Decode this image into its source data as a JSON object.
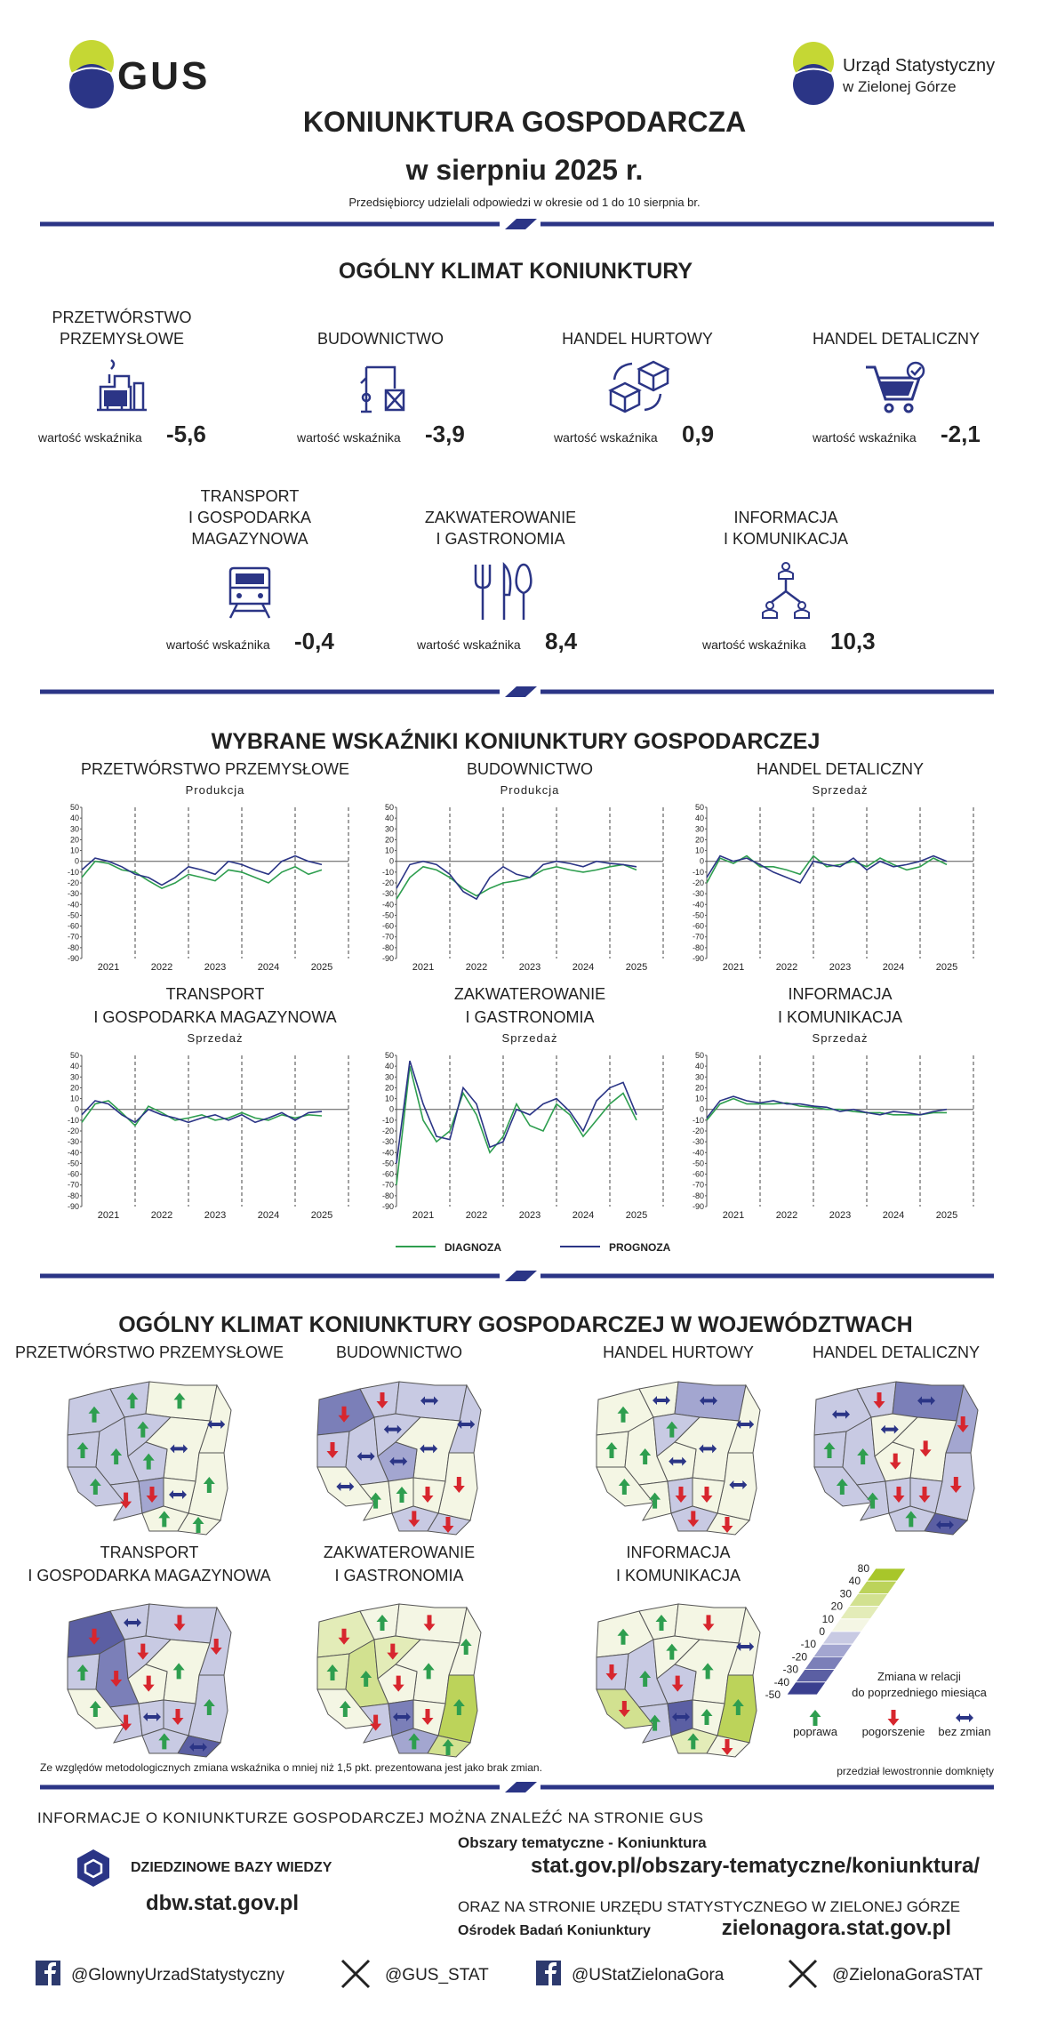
{
  "header": {
    "logo_left": "GUS",
    "logo_right_1": "Urząd Statystyczny",
    "logo_right_2": "w Zielonej Górze",
    "title_1": "KONIUNKTURA GOSPODARCZA",
    "title_2": "w sierpniu 2025 r.",
    "subtitle": "Przedsiębiorcy udzielali odpowiedzi w okresie od 1 do 10 sierpnia br."
  },
  "climate": {
    "title": "OGÓLNY KLIMAT KONIUNKTURY",
    "caption": "wartość wskaźnika",
    "items": [
      {
        "label": [
          "PRZETWÓRSTWO",
          "PRZEMYSŁOWE"
        ],
        "value": "-5,6"
      },
      {
        "label": [
          "BUDOWNICTWO"
        ],
        "value": "-3,9"
      },
      {
        "label": [
          "HANDEL HURTOWY"
        ],
        "value": "0,9"
      },
      {
        "label": [
          "HANDEL DETALICZNY"
        ],
        "value": "-2,1"
      },
      {
        "label": [
          "TRANSPORT",
          "I GOSPODARKA",
          "MAGAZYNOWA"
        ],
        "value": "-0,4"
      },
      {
        "label": [
          "ZAKWATEROWANIE",
          "I GASTRONOMIA"
        ],
        "value": "8,4"
      },
      {
        "label": [
          "INFORMACJA",
          "I KOMUNIKACJA"
        ],
        "value": "10,3"
      }
    ]
  },
  "indicators_title": "WYBRANE WSKAŹNIKI KONIUNKTURY GOSPODARCZEJ",
  "chart_data": [
    {
      "type": "line",
      "title": [
        "PRZETWÓRSTWO PRZEMYSŁOWE"
      ],
      "subtitle": "Produkcja",
      "x": [
        2021,
        2021.25,
        2021.5,
        2021.75,
        2022,
        2022.25,
        2022.5,
        2022.75,
        2023,
        2023.25,
        2023.5,
        2023.75,
        2024,
        2024.25,
        2024.5,
        2024.75,
        2025,
        2025.25,
        2025.5
      ],
      "xlim": [
        2021,
        2026
      ],
      "xticks": [
        2021,
        2022,
        2023,
        2024,
        2025
      ],
      "ylim": [
        -90,
        50
      ],
      "yticks": [
        50,
        40,
        30,
        20,
        10,
        0,
        -10,
        -20,
        -30,
        -40,
        -50,
        -60,
        -70,
        -80,
        -90
      ],
      "series": [
        {
          "name": "DIAGNOZA",
          "color": "#2e9e4f",
          "values": [
            -15,
            0,
            -2,
            -8,
            -10,
            -18,
            -25,
            -20,
            -12,
            -15,
            -18,
            -8,
            -10,
            -15,
            -20,
            -10,
            -5,
            -12,
            -8
          ]
        },
        {
          "name": "PROGNOZA",
          "color": "#2b3586",
          "values": [
            -8,
            3,
            0,
            -5,
            -12,
            -15,
            -22,
            -15,
            -5,
            -8,
            -12,
            0,
            -3,
            -8,
            -12,
            0,
            5,
            0,
            -3
          ]
        }
      ]
    },
    {
      "type": "line",
      "title": [
        "BUDOWNICTWO"
      ],
      "subtitle": "Produkcja",
      "x": [
        2021,
        2021.25,
        2021.5,
        2021.75,
        2022,
        2022.25,
        2022.5,
        2022.75,
        2023,
        2023.25,
        2023.5,
        2023.75,
        2024,
        2024.25,
        2024.5,
        2024.75,
        2025,
        2025.25,
        2025.5
      ],
      "xlim": [
        2021,
        2026
      ],
      "xticks": [
        2021,
        2022,
        2023,
        2024,
        2025
      ],
      "ylim": [
        -90,
        50
      ],
      "yticks": [
        50,
        40,
        30,
        20,
        10,
        0,
        -10,
        -20,
        -30,
        -40,
        -50,
        -60,
        -70,
        -80,
        -90
      ],
      "series": [
        {
          "name": "DIAGNOZA",
          "color": "#2e9e4f",
          "values": [
            -35,
            -15,
            -5,
            -8,
            -15,
            -25,
            -32,
            -25,
            -20,
            -18,
            -15,
            -8,
            -5,
            -8,
            -10,
            -8,
            -5,
            -3,
            -8
          ]
        },
        {
          "name": "PROGNOZA",
          "color": "#2b3586",
          "values": [
            -25,
            -3,
            0,
            -3,
            -12,
            -28,
            -35,
            -15,
            -5,
            -12,
            -15,
            -3,
            0,
            -2,
            -5,
            0,
            -2,
            -3,
            -5
          ]
        }
      ]
    },
    {
      "type": "line",
      "title": [
        "HANDEL DETALICZNY"
      ],
      "subtitle": "Sprzedaż",
      "x": [
        2021,
        2021.25,
        2021.5,
        2021.75,
        2022,
        2022.25,
        2022.5,
        2022.75,
        2023,
        2023.25,
        2023.5,
        2023.75,
        2024,
        2024.25,
        2024.5,
        2024.75,
        2025,
        2025.25,
        2025.5
      ],
      "xlim": [
        2021,
        2026
      ],
      "xticks": [
        2021,
        2022,
        2023,
        2024,
        2025
      ],
      "ylim": [
        -90,
        50
      ],
      "yticks": [
        50,
        40,
        30,
        20,
        10,
        0,
        -10,
        -20,
        -30,
        -40,
        -50,
        -60,
        -70,
        -80,
        -90
      ],
      "series": [
        {
          "name": "DIAGNOZA",
          "color": "#2e9e4f",
          "values": [
            -20,
            3,
            -2,
            5,
            -5,
            -5,
            -8,
            -12,
            5,
            -5,
            -3,
            0,
            -5,
            3,
            -3,
            -8,
            -5,
            3,
            -3
          ]
        },
        {
          "name": "PROGNOZA",
          "color": "#2b3586",
          "values": [
            -15,
            5,
            0,
            3,
            -3,
            -10,
            -15,
            -20,
            0,
            -3,
            -5,
            3,
            -8,
            0,
            -5,
            -3,
            0,
            5,
            0
          ]
        }
      ]
    },
    {
      "type": "line",
      "title": [
        "TRANSPORT",
        "I GOSPODARKA MAGAZYNOWA"
      ],
      "subtitle": "Sprzedaż",
      "x": [
        2021,
        2021.25,
        2021.5,
        2021.75,
        2022,
        2022.25,
        2022.5,
        2022.75,
        2023,
        2023.25,
        2023.5,
        2023.75,
        2024,
        2024.25,
        2024.5,
        2024.75,
        2025,
        2025.25,
        2025.5
      ],
      "xlim": [
        2021,
        2026
      ],
      "xticks": [
        2021,
        2022,
        2023,
        2024,
        2025
      ],
      "ylim": [
        -90,
        50
      ],
      "yticks": [
        50,
        40,
        30,
        20,
        10,
        0,
        -10,
        -20,
        -30,
        -40,
        -50,
        -60,
        -70,
        -80,
        -90
      ],
      "series": [
        {
          "name": "DIAGNOZA",
          "color": "#2e9e4f",
          "values": [
            -12,
            5,
            8,
            -3,
            -15,
            3,
            -3,
            -10,
            -8,
            -5,
            -10,
            -8,
            -3,
            -8,
            -10,
            -5,
            -8,
            -5,
            -6
          ]
        },
        {
          "name": "PROGNOZA",
          "color": "#2b3586",
          "values": [
            -5,
            8,
            5,
            -5,
            -12,
            0,
            -5,
            -8,
            -12,
            -8,
            -5,
            -10,
            -5,
            -12,
            -8,
            -3,
            -10,
            -3,
            -2
          ]
        }
      ]
    },
    {
      "type": "line",
      "title": [
        "ZAKWATEROWANIE",
        "I GASTRONOMIA"
      ],
      "subtitle": "Sprzedaż",
      "x": [
        2021,
        2021.25,
        2021.5,
        2021.75,
        2022,
        2022.25,
        2022.5,
        2022.75,
        2023,
        2023.25,
        2023.5,
        2023.75,
        2024,
        2024.25,
        2024.5,
        2024.75,
        2025,
        2025.25,
        2025.5
      ],
      "xlim": [
        2021,
        2026
      ],
      "xticks": [
        2021,
        2022,
        2023,
        2024,
        2025
      ],
      "ylim": [
        -90,
        50
      ],
      "yticks": [
        50,
        40,
        30,
        20,
        10,
        0,
        -10,
        -20,
        -30,
        -40,
        -50,
        -60,
        -70,
        -80,
        -90
      ],
      "series": [
        {
          "name": "DIAGNOZA",
          "color": "#2e9e4f",
          "values": [
            -70,
            40,
            -10,
            -30,
            -20,
            15,
            -5,
            -40,
            -25,
            5,
            -15,
            -20,
            5,
            -5,
            -25,
            -10,
            5,
            15,
            -10
          ]
        },
        {
          "name": "PROGNOZA",
          "color": "#2b3586",
          "values": [
            -50,
            45,
            5,
            -25,
            -28,
            20,
            5,
            -35,
            -30,
            0,
            -5,
            5,
            10,
            -2,
            -20,
            8,
            20,
            25,
            -5
          ]
        }
      ]
    },
    {
      "type": "line",
      "title": [
        "INFORMACJA",
        "I KOMUNIKACJA"
      ],
      "subtitle": "Sprzedaż",
      "x": [
        2021,
        2021.25,
        2021.5,
        2021.75,
        2022,
        2022.25,
        2022.5,
        2022.75,
        2023,
        2023.25,
        2023.5,
        2023.75,
        2024,
        2024.25,
        2024.5,
        2024.75,
        2025,
        2025.25,
        2025.5
      ],
      "xlim": [
        2021,
        2026
      ],
      "xticks": [
        2021,
        2022,
        2023,
        2024,
        2025
      ],
      "ylim": [
        -90,
        50
      ],
      "yticks": [
        50,
        40,
        30,
        20,
        10,
        0,
        -10,
        -20,
        -30,
        -40,
        -50,
        -60,
        -70,
        -80,
        -90
      ],
      "series": [
        {
          "name": "DIAGNOZA",
          "color": "#2e9e4f",
          "values": [
            -10,
            5,
            10,
            5,
            5,
            5,
            6,
            3,
            2,
            0,
            0,
            -2,
            -3,
            -3,
            -5,
            -5,
            -5,
            -3,
            -3
          ]
        },
        {
          "name": "PROGNOZA",
          "color": "#2b3586",
          "values": [
            -8,
            8,
            12,
            8,
            6,
            8,
            5,
            5,
            3,
            2,
            -2,
            0,
            -3,
            -5,
            -2,
            -3,
            -5,
            -2,
            0
          ]
        }
      ]
    }
  ],
  "regional": {
    "title": "OGÓLNY KLIMAT KONIUNKTURY GOSPODARCZEJ W WOJEWÓDZTWACH",
    "maps": [
      {
        "title": [
          "PRZETWÓRSTWO PRZEMYSŁOWE"
        ],
        "colors": [
          "#c8cae3",
          "#c8cae3",
          "#f4f6e4",
          "#f4f6e4",
          "#c8cae3",
          "#c8cae3",
          "#c8cae3",
          "#f4f6e4",
          "#c8cae3",
          "#f4f6e4",
          "#c8cae3",
          "#c8cae3",
          "#a3a6d0",
          "#f4f6e4",
          "#f4f6e4",
          "#f4f6e4"
        ],
        "trends": [
          "poprawa",
          "poprawa",
          "poprawa",
          "bez zmian",
          "poprawa",
          "poprawa",
          "poprawa",
          "bez zmian",
          "poprawa",
          "poprawa",
          "poprawa",
          "pogorszenie",
          "pogorszenie",
          "bez zmian",
          "poprawa",
          "poprawa"
        ]
      },
      {
        "title": [
          "BUDOWNICTWO"
        ],
        "colors": [
          "#7b7fb8",
          "#c8cae3",
          "#c8cae3",
          "#c8cae3",
          "#c8cae3",
          "#c8cae3",
          "#c8cae3",
          "#f4f6e4",
          "#a3a6d0",
          "#f4f6e4",
          "#f4f6e4",
          "#f4f6e4",
          "#f4f6e4",
          "#f4f6e4",
          "#c8cae3",
          "#c8cae3"
        ],
        "trends": [
          "pogorszenie",
          "pogorszenie",
          "bez zmian",
          "bez zmian",
          "pogorszenie",
          "bez zmian",
          "bez zmian",
          "bez zmian",
          "bez zmian",
          "pogorszenie",
          "bez zmian",
          "poprawa",
          "poprawa",
          "pogorszenie",
          "pogorszenie",
          "pogorszenie"
        ]
      },
      {
        "title": [
          "HANDEL HURTOWY"
        ],
        "colors": [
          "#f4f6e4",
          "#f4f6e4",
          "#a3a6d0",
          "#f4f6e4",
          "#f4f6e4",
          "#f4f6e4",
          "#c8cae3",
          "#f4f6e4",
          "#f4f6e4",
          "#f4f6e4",
          "#f4f6e4",
          "#f4f6e4",
          "#c8cae3",
          "#f4f6e4",
          "#c8cae3",
          "#f4f6e4"
        ],
        "trends": [
          "poprawa",
          "bez zmian",
          "bez zmian",
          "bez zmian",
          "poprawa",
          "poprawa",
          "poprawa",
          "bez zmian",
          "bez zmian",
          "bez zmian",
          "poprawa",
          "poprawa",
          "pogorszenie",
          "pogorszenie",
          "pogorszenie",
          "pogorszenie"
        ]
      },
      {
        "title": [
          "HANDEL DETALICZNY"
        ],
        "colors": [
          "#c8cae3",
          "#c8cae3",
          "#7b7fb8",
          "#a3a6d0",
          "#c8cae3",
          "#c8cae3",
          "#f4f6e4",
          "#f4f6e4",
          "#f4f6e4",
          "#c8cae3",
          "#c8cae3",
          "#c8cae3",
          "#c8cae3",
          "#c8cae3",
          "#c8cae3",
          "#5b5fa3"
        ],
        "trends": [
          "bez zmian",
          "pogorszenie",
          "bez zmian",
          "pogorszenie",
          "poprawa",
          "poprawa",
          "bez zmian",
          "pogorszenie",
          "pogorszenie",
          "pogorszenie",
          "poprawa",
          "poprawa",
          "pogorszenie",
          "pogorszenie",
          "poprawa",
          "bez zmian"
        ]
      },
      {
        "title": [
          "TRANSPORT",
          "I GOSPODARKA MAGAZYNOWA"
        ],
        "colors": [
          "#5b5fa3",
          "#c8cae3",
          "#c8cae3",
          "#c8cae3",
          "#c8cae3",
          "#7b7fb8",
          "#c8cae3",
          "#f4f6e4",
          "#f4f6e4",
          "#c8cae3",
          "#f4f6e4",
          "#c8cae3",
          "#c8cae3",
          "#c8cae3",
          "#c8cae3",
          "#5b5fa3"
        ],
        "trends": [
          "pogorszenie",
          "bez zmian",
          "pogorszenie",
          "pogorszenie",
          "poprawa",
          "pogorszenie",
          "pogorszenie",
          "poprawa",
          "pogorszenie",
          "poprawa",
          "poprawa",
          "pogorszenie",
          "bez zmian",
          "pogorszenie",
          "poprawa",
          "bez zmian"
        ]
      },
      {
        "title": [
          "ZAKWATEROWANIE",
          "I GASTRONOMIA"
        ],
        "colors": [
          "#e3ecb8",
          "#f4f6e4",
          "#f4f6e4",
          "#f4f6e4",
          "#e3ecb8",
          "#d2e190",
          "#e3ecb8",
          "#f4f6e4",
          "#f4f6e4",
          "#bcd35a",
          "#f4f6e4",
          "#c8cae3",
          "#7b7fb8",
          "#f4f6e4",
          "#a3a6d0",
          "#d2e190"
        ],
        "trends": [
          "pogorszenie",
          "poprawa",
          "pogorszenie",
          "poprawa",
          "poprawa",
          "poprawa",
          "pogorszenie",
          "poprawa",
          "pogorszenie",
          "poprawa",
          "poprawa",
          "pogorszenie",
          "bez zmian",
          "pogorszenie",
          "poprawa",
          "poprawa"
        ]
      },
      {
        "title": [
          "INFORMACJA",
          "I KOMUNIKACJA"
        ],
        "colors": [
          "#f4f6e4",
          "#f4f6e4",
          "#f4f6e4",
          "#f4f6e4",
          "#c8cae3",
          "#c8cae3",
          "#f4f6e4",
          "#f4f6e4",
          "#c8cae3",
          "#bcd35a",
          "#d2e190",
          "#c8cae3",
          "#5b5fa3",
          "#f4f6e4",
          "#e3ecb8",
          "#f4f6e4"
        ],
        "trends": [
          "poprawa",
          "poprawa",
          "pogorszenie",
          "bez zmian",
          "pogorszenie",
          "poprawa",
          "poprawa",
          "poprawa",
          "pogorszenie",
          "poprawa",
          "pogorszenie",
          "poprawa",
          "bez zmian",
          "poprawa",
          "poprawa",
          "pogorszenie"
        ]
      }
    ],
    "scale": {
      "labels": [
        80,
        40,
        30,
        20,
        10,
        0,
        -10,
        -20,
        -30,
        -40,
        -50
      ],
      "colors": [
        "#a8c62a",
        "#bcd35a",
        "#d2e190",
        "#e3ecb8",
        "#f4f6e4",
        "#c8cae3",
        "#a3a6d0",
        "#7b7fb8",
        "#5b5fa3",
        "#3a3f8f"
      ]
    },
    "scale_caption": [
      "Zmiana w relacji",
      "do poprzedniego miesiąca"
    ],
    "trend_legend": [
      {
        "label": "poprawa",
        "color": "#2e9e4f"
      },
      {
        "label": "pogorszenie",
        "color": "#d7262e"
      },
      {
        "label": "bez zmian",
        "color": "#2b3586"
      }
    ],
    "note": "Ze względów metodologicznych zmiana wskaźnika o mniej niż 1,5 pkt. prezentowana jest jako brak zmian.",
    "note_right": "przedział lewostronnie domknięty"
  },
  "footer": {
    "info": "INFORMACJE O KONIUNKTURZE GOSPODARCZEJ MOŻNA ZNALEŹĆ NA STRONIE GUS",
    "dbw_label": "DZIEDZINOWE BAZY WIEDZY",
    "dbw_url": "dbw.stat.gov.pl",
    "areas_label": "Obszary tematyczne - Koniunktura",
    "areas_url": "stat.gov.pl/obszary-tematyczne/koniunktura/",
    "us_info": "ORAZ NA STRONIE URZĘDU STATYSTYCZNEGO W ZIELONEJ GÓRZE",
    "obk_label": "Ośrodek Badań Koniunktury",
    "obk_url": "zielonagora.stat.gov.pl",
    "social": [
      "@GlownyUrzadStatystyczny",
      "@GUS_STAT",
      "@UStatZielonaGora",
      "@ZielonaGoraSTAT"
    ]
  }
}
